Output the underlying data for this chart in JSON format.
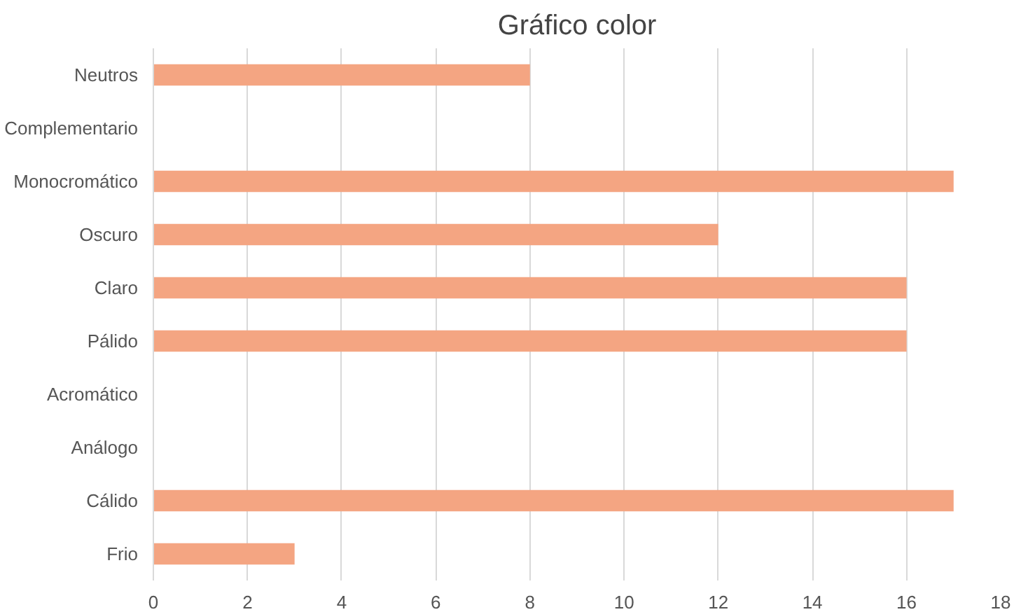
{
  "chart_data": {
    "type": "bar",
    "orientation": "horizontal",
    "title": "Gráfico color",
    "categories": [
      "Neutros",
      "Complementario",
      "Monocromático",
      "Oscuro",
      "Claro",
      "Pálido",
      "Acromático",
      "Análogo",
      "Cálido",
      "Frio"
    ],
    "values": [
      8,
      0,
      17,
      12,
      16,
      16,
      0,
      0,
      17,
      3
    ],
    "color": "#f4a582",
    "xlim": [
      0,
      18
    ],
    "xticks": [
      0,
      2,
      4,
      6,
      8,
      10,
      12,
      14,
      16,
      18
    ],
    "grid": "x"
  }
}
